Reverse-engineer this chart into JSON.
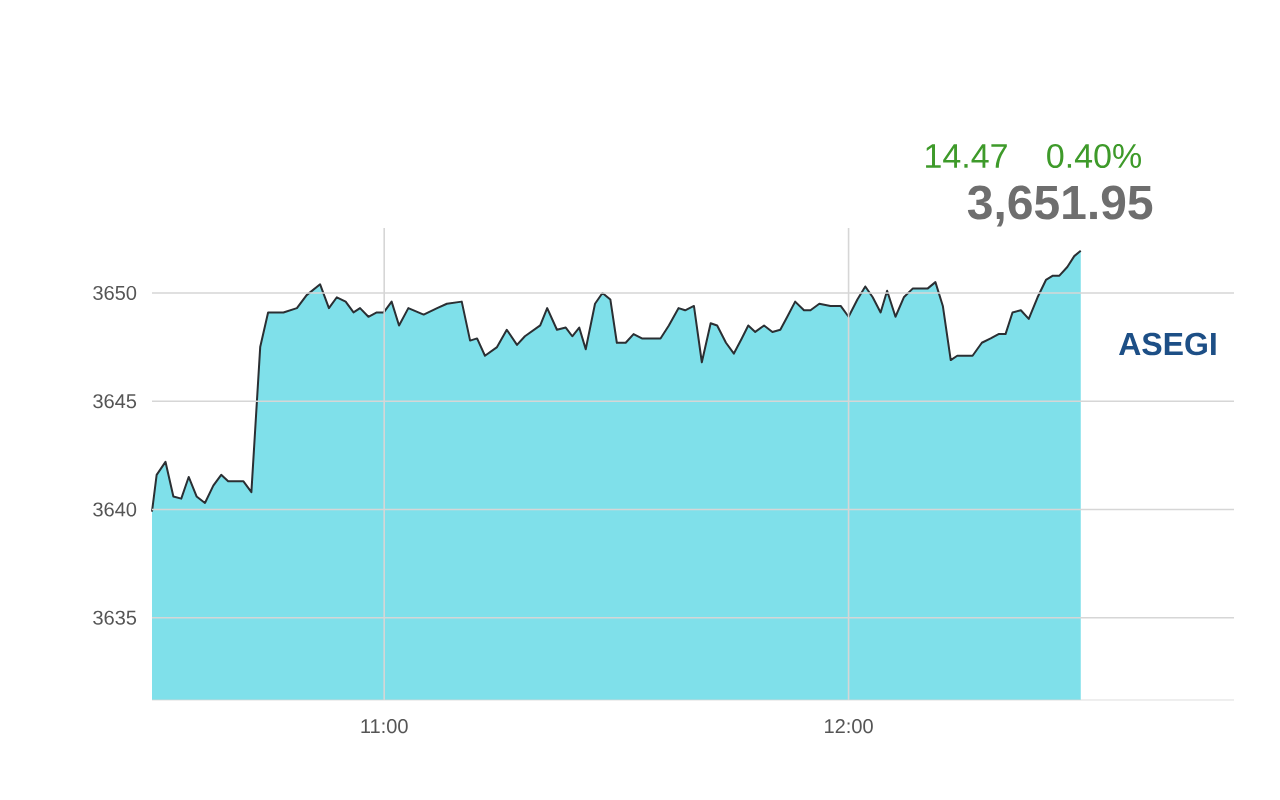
{
  "chart_data": {
    "type": "area",
    "annotations": [
      "14.47",
      "0.40%",
      "3,651.95",
      "ASEGI"
    ],
    "x": [
      10.5,
      10.51,
      10.529,
      10.546,
      10.563,
      10.579,
      10.596,
      10.614,
      10.632,
      10.649,
      10.664,
      10.697,
      10.714,
      10.733,
      10.75,
      10.783,
      10.812,
      10.833,
      10.862,
      10.881,
      10.898,
      10.917,
      10.934,
      10.948,
      10.966,
      10.984,
      10.999,
      11.016,
      11.032,
      11.052,
      11.085,
      11.114,
      11.135,
      11.167,
      11.185,
      11.2,
      11.217,
      11.243,
      11.264,
      11.286,
      11.303,
      11.336,
      11.351,
      11.372,
      11.391,
      11.405,
      11.42,
      11.434,
      11.454,
      11.47,
      11.487,
      11.501,
      11.52,
      11.537,
      11.555,
      11.595,
      11.613,
      11.634,
      11.648,
      11.667,
      11.684,
      11.703,
      11.717,
      11.736,
      11.753,
      11.77,
      11.784,
      11.799,
      11.818,
      11.836,
      11.853,
      11.868,
      11.885,
      11.904,
      11.918,
      11.937,
      11.961,
      11.983,
      12.0,
      12.019,
      12.036,
      12.052,
      12.069,
      12.083,
      12.101,
      12.119,
      12.138,
      12.17,
      12.187,
      12.203,
      12.22,
      12.234,
      12.267,
      12.287,
      12.306,
      12.323,
      12.338,
      12.353,
      12.371,
      12.388,
      12.407,
      12.425,
      12.44,
      12.454,
      12.471,
      12.486,
      12.5
    ],
    "series": [
      {
        "color": "#7fe0ea",
        "values": [
          3639.9,
          3641.6,
          3642.2,
          3640.6,
          3640.5,
          3641.5,
          3640.6,
          3640.3,
          3641.1,
          3641.6,
          3641.3,
          3641.3,
          3640.8,
          3647.5,
          3649.1,
          3649.1,
          3649.3,
          3649.9,
          3650.4,
          3649.3,
          3649.8,
          3649.6,
          3649.1,
          3649.3,
          3648.9,
          3649.1,
          3649.1,
          3649.6,
          3648.5,
          3649.3,
          3649.0,
          3649.3,
          3649.5,
          3649.6,
          3647.8,
          3647.9,
          3647.1,
          3647.5,
          3648.3,
          3647.6,
          3648.0,
          3648.5,
          3649.3,
          3648.3,
          3648.4,
          3648.0,
          3648.4,
          3647.4,
          3649.5,
          3650.0,
          3649.7,
          3647.7,
          3647.7,
          3648.1,
          3647.9,
          3647.9,
          3648.5,
          3649.3,
          3649.2,
          3649.4,
          3646.8,
          3648.6,
          3648.5,
          3647.7,
          3647.2,
          3647.9,
          3648.5,
          3648.2,
          3648.5,
          3648.2,
          3648.3,
          3648.9,
          3649.6,
          3649.2,
          3649.2,
          3649.5,
          3649.4,
          3649.4,
          3648.9,
          3649.7,
          3650.3,
          3649.8,
          3649.1,
          3650.1,
          3648.9,
          3649.8,
          3650.2,
          3650.2,
          3650.5,
          3649.4,
          3646.9,
          3647.1,
          3647.1,
          3647.7,
          3647.9,
          3648.1,
          3648.1,
          3649.1,
          3649.2,
          3648.8,
          3649.8,
          3650.6,
          3650.8,
          3650.8,
          3651.2,
          3651.7,
          3651.95
        ]
      }
    ],
    "xlim": [
      10.5,
      12.83
    ],
    "ylim": [
      3631.2,
      3653
    ],
    "xticks": [
      {
        "value": 11,
        "label": "11:00"
      },
      {
        "value": 12,
        "label": "12:00"
      }
    ],
    "yticks": [
      3635,
      3640,
      3645,
      3650
    ],
    "grid": true
  }
}
